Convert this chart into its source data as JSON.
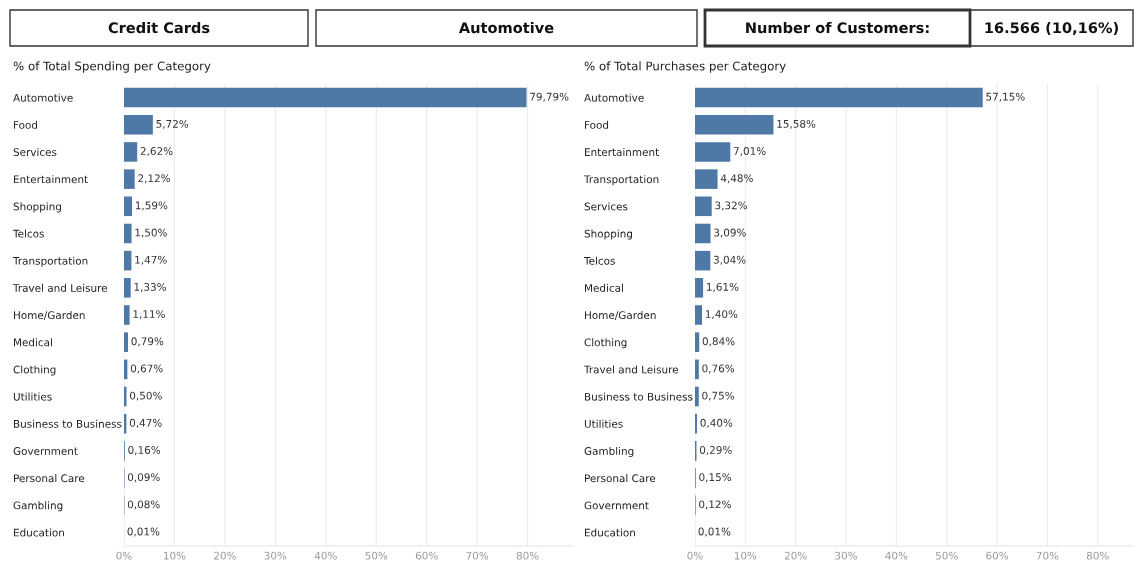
{
  "chart_data": [
    {
      "type": "other",
      "annotations": [
        "Credit Cards",
        "Automotive",
        "Number of Customers:",
        "16.566 (10,16%)"
      ]
    },
    {
      "type": "bar",
      "orientation": "horizontal",
      "title": "% of Total Spending per Category",
      "color": "#4e79a7",
      "categories": [
        "Automotive",
        "Food",
        "Services",
        "Entertainment",
        "Shopping",
        "Telcos",
        "Transportation",
        "Travel and Leisure",
        "Home/Garden",
        "Medical",
        "Clothing",
        "Utilities",
        "Business to Business",
        "Government",
        "Personal Care",
        "Gambling",
        "Education"
      ],
      "values": [
        79.79,
        5.72,
        2.62,
        2.12,
        1.59,
        1.5,
        1.47,
        1.33,
        1.11,
        0.79,
        0.67,
        0.5,
        0.47,
        0.16,
        0.09,
        0.08,
        0.01
      ],
      "value_labels": [
        "79,79%",
        "5,72%",
        "2,62%",
        "2,12%",
        "1,59%",
        "1,50%",
        "1,47%",
        "1,33%",
        "1,11%",
        "0,79%",
        "0,67%",
        "0,50%",
        "0,47%",
        "0,16%",
        "0,09%",
        "0,08%",
        "0,01%"
      ],
      "xlim": [
        0,
        89
      ],
      "xticks": [
        {
          "value": 0,
          "label": "0%"
        },
        {
          "value": 10,
          "label": "10%"
        },
        {
          "value": 20,
          "label": "20%"
        },
        {
          "value": 30,
          "label": "30%"
        },
        {
          "value": 40,
          "label": "40%"
        },
        {
          "value": 50,
          "label": "50%"
        },
        {
          "value": 60,
          "label": "60%"
        },
        {
          "value": 70,
          "label": "70%"
        },
        {
          "value": 80,
          "label": "80%"
        }
      ],
      "grid": "x"
    },
    {
      "type": "bar",
      "orientation": "horizontal",
      "title": "% of Total Purchases per Category",
      "color": "#4e79a7",
      "categories": [
        "Automotive",
        "Food",
        "Entertainment",
        "Transportation",
        "Services",
        "Shopping",
        "Telcos",
        "Medical",
        "Home/Garden",
        "Clothing",
        "Travel and Leisure",
        "Business to Business",
        "Utilities",
        "Gambling",
        "Personal Care",
        "Government",
        "Education"
      ],
      "values": [
        57.15,
        15.58,
        7.01,
        4.48,
        3.32,
        3.09,
        3.04,
        1.61,
        1.4,
        0.84,
        0.76,
        0.75,
        0.4,
        0.29,
        0.15,
        0.12,
        0.01
      ],
      "value_labels": [
        "57,15%",
        "15,58%",
        "7,01%",
        "4,48%",
        "3,32%",
        "3,09%",
        "3,04%",
        "1,61%",
        "1,40%",
        "0,84%",
        "0,76%",
        "0,75%",
        "0,40%",
        "0,29%",
        "0,15%",
        "0,12%",
        "0,01%"
      ],
      "xlim": [
        0,
        87
      ],
      "xticks": [
        {
          "value": 0,
          "label": "0%"
        },
        {
          "value": 10,
          "label": "10%"
        },
        {
          "value": 20,
          "label": "20%"
        },
        {
          "value": 30,
          "label": "30%"
        },
        {
          "value": 40,
          "label": "40%"
        },
        {
          "value": 50,
          "label": "50%"
        },
        {
          "value": 60,
          "label": "60%"
        },
        {
          "value": 70,
          "label": "70%"
        },
        {
          "value": 80,
          "label": "80%"
        }
      ],
      "grid": "x"
    }
  ]
}
